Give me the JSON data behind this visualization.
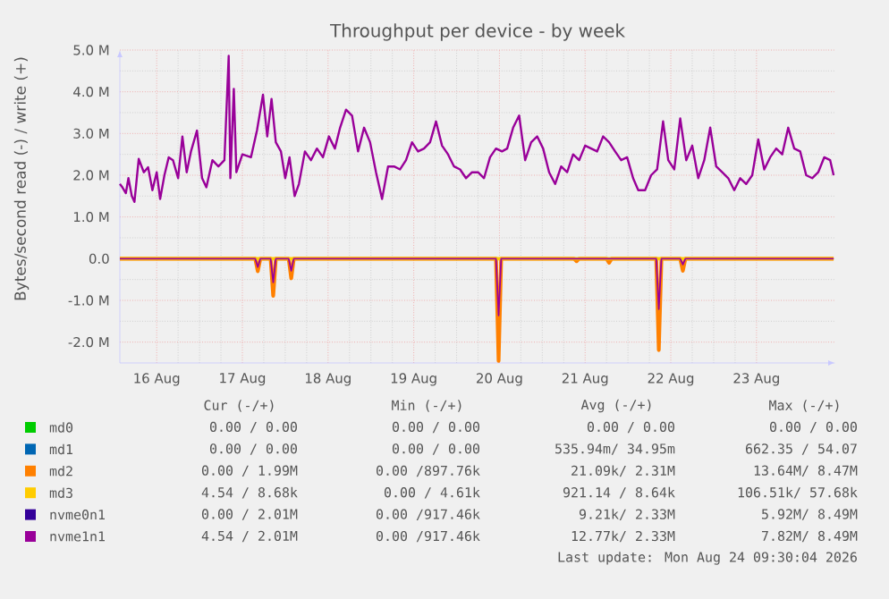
{
  "chart_data": {
    "type": "line",
    "title": "Throughput per device - by week",
    "ylabel": "Bytes/second read (-) / write (+)",
    "xlim": [
      "2026-08-15T13:41",
      "2026-08-23T22:05"
    ],
    "ylim": [
      -2.5,
      5.0
    ],
    "xticks": [
      {
        "value": "2026-08-16",
        "label": "16 Aug"
      },
      {
        "value": "2026-08-17",
        "label": "17 Aug"
      },
      {
        "value": "2026-08-18",
        "label": "18 Aug"
      },
      {
        "value": "2026-08-19",
        "label": "19 Aug"
      },
      {
        "value": "2026-08-20",
        "label": "20 Aug"
      },
      {
        "value": "2026-08-21",
        "label": "21 Aug"
      },
      {
        "value": "2026-08-22",
        "label": "22 Aug"
      },
      {
        "value": "2026-08-23",
        "label": "23 Aug"
      }
    ],
    "yticks": [
      {
        "value": -2,
        "label": "-2.0 M"
      },
      {
        "value": -1,
        "label": "-1.0 M"
      },
      {
        "value": 0,
        "label": "0.0"
      },
      {
        "value": 1,
        "label": "1.0 M"
      },
      {
        "value": 2,
        "label": "2.0 M"
      },
      {
        "value": 3,
        "label": "3.0 M"
      },
      {
        "value": 4,
        "label": "4.0 M"
      },
      {
        "value": 5,
        "label": "5.0 M"
      }
    ],
    "grid": true,
    "legend": "bottom",
    "series": [
      {
        "name": "md0",
        "color": "#00cc00"
      },
      {
        "name": "md1",
        "color": "#0066b3"
      },
      {
        "name": "md2",
        "color": "#ff8000",
        "x": [
          "2026-08-15T13:41",
          "2026-08-17T03:36",
          "2026-08-17T04:19",
          "2026-08-17T05:02",
          "2026-08-17T07:55",
          "2026-08-17T08:38",
          "2026-08-17T09:22",
          "2026-08-17T12:58",
          "2026-08-17T13:41",
          "2026-08-17T14:24",
          "2026-08-19T23:02",
          "2026-08-19T23:46",
          "2026-08-20T00:29",
          "2026-08-20T20:53",
          "2026-08-20T21:36",
          "2026-08-20T22:19",
          "2026-08-21T06:00",
          "2026-08-21T06:43",
          "2026-08-21T07:26",
          "2026-08-21T19:55",
          "2026-08-21T20:38",
          "2026-08-21T21:22",
          "2026-08-22T02:38",
          "2026-08-22T03:22",
          "2026-08-22T04:05",
          "2026-08-23T21:36"
        ],
        "values": [
          0,
          0,
          -0.3,
          0,
          0,
          -0.89,
          0,
          0,
          -0.47,
          0,
          0,
          -2.45,
          0,
          0,
          -0.06,
          0,
          0,
          -0.1,
          0,
          0,
          -2.19,
          0,
          0,
          -0.29,
          0,
          0
        ]
      },
      {
        "name": "md3",
        "color": "#ffcc00",
        "x": [
          "2026-08-15T13:41",
          "2026-08-23T21:36"
        ],
        "values": [
          0,
          0
        ]
      },
      {
        "name": "nvme0n1",
        "color": "#330099"
      },
      {
        "name": "nvme1n1",
        "color": "#990099",
        "x": [
          "2026-08-15T13:41",
          "2026-08-15T14:24",
          "2026-08-15T15:22",
          "2026-08-15T16:05",
          "2026-08-15T17:02",
          "2026-08-15T17:46",
          "2026-08-15T18:58",
          "2026-08-15T20:24",
          "2026-08-15T21:36",
          "2026-08-15T22:48",
          "2026-08-16T00:00",
          "2026-08-16T00:58",
          "2026-08-16T02:10",
          "2026-08-16T03:22",
          "2026-08-16T04:34",
          "2026-08-16T06:00",
          "2026-08-16T07:12",
          "2026-08-16T08:24",
          "2026-08-16T09:36",
          "2026-08-16T11:17",
          "2026-08-16T12:43",
          "2026-08-16T13:55",
          "2026-08-16T15:36",
          "2026-08-16T17:17",
          "2026-08-16T18:58",
          "2026-08-16T20:10",
          "2026-08-16T20:38",
          "2026-08-16T21:36",
          "2026-08-16T22:19",
          "2026-08-17T00:00",
          "2026-08-17T02:24",
          "2026-08-17T04:05",
          "2026-08-17T05:46",
          "2026-08-17T06:58",
          "2026-08-17T08:10",
          "2026-08-17T09:22",
          "2026-08-17T10:48",
          "2026-08-17T12:00",
          "2026-08-17T13:12",
          "2026-08-17T14:38",
          "2026-08-17T15:50",
          "2026-08-17T17:31",
          "2026-08-17T19:12",
          "2026-08-17T20:53",
          "2026-08-17T22:34",
          "2026-08-18T00:14",
          "2026-08-18T01:55",
          "2026-08-18T03:22",
          "2026-08-18T05:02",
          "2026-08-18T06:43",
          "2026-08-18T08:24",
          "2026-08-18T10:05",
          "2026-08-18T11:46",
          "2026-08-18T13:26",
          "2026-08-18T15:07",
          "2026-08-18T16:48",
          "2026-08-18T18:29",
          "2026-08-18T20:10",
          "2026-08-18T21:50",
          "2026-08-18T23:31",
          "2026-08-19T01:12",
          "2026-08-19T02:53",
          "2026-08-19T04:34",
          "2026-08-19T06:14",
          "2026-08-19T07:55",
          "2026-08-19T09:36",
          "2026-08-19T11:17",
          "2026-08-19T12:58",
          "2026-08-19T14:38",
          "2026-08-19T16:19",
          "2026-08-19T18:00",
          "2026-08-19T19:41",
          "2026-08-19T21:22",
          "2026-08-19T23:02",
          "2026-08-20T00:43",
          "2026-08-20T02:10",
          "2026-08-20T03:50",
          "2026-08-20T05:31",
          "2026-08-20T07:12",
          "2026-08-20T08:53",
          "2026-08-20T10:34",
          "2026-08-20T12:14",
          "2026-08-20T13:55",
          "2026-08-20T15:36",
          "2026-08-20T17:17",
          "2026-08-20T18:58",
          "2026-08-20T20:38",
          "2026-08-20T22:19",
          "2026-08-21T00:00",
          "2026-08-21T01:41",
          "2026-08-21T03:22",
          "2026-08-21T05:02",
          "2026-08-21T06:43",
          "2026-08-21T08:24",
          "2026-08-21T10:05",
          "2026-08-21T11:46",
          "2026-08-21T13:26",
          "2026-08-21T14:53",
          "2026-08-21T16:48",
          "2026-08-21T18:29",
          "2026-08-21T20:10",
          "2026-08-21T21:50",
          "2026-08-21T23:17",
          "2026-08-22T00:58",
          "2026-08-22T02:38",
          "2026-08-22T04:19",
          "2026-08-22T06:00",
          "2026-08-22T07:41",
          "2026-08-22T09:22",
          "2026-08-22T11:02",
          "2026-08-22T12:43",
          "2026-08-22T14:24",
          "2026-08-22T16:05",
          "2026-08-22T17:46",
          "2026-08-22T19:26",
          "2026-08-22T21:07",
          "2026-08-22T22:48",
          "2026-08-23T00:29",
          "2026-08-23T02:10",
          "2026-08-23T03:50",
          "2026-08-23T05:31",
          "2026-08-23T07:12",
          "2026-08-23T08:53",
          "2026-08-23T10:34",
          "2026-08-23T12:14",
          "2026-08-23T13:55",
          "2026-08-23T15:36",
          "2026-08-23T17:17",
          "2026-08-23T18:58",
          "2026-08-23T20:38",
          "2026-08-23T21:36"
        ],
        "values": [
          1.79,
          1.71,
          1.57,
          1.93,
          1.5,
          1.36,
          2.39,
          2.07,
          2.19,
          1.64,
          2.07,
          1.43,
          2.0,
          2.43,
          2.36,
          1.93,
          2.93,
          2.07,
          2.57,
          3.07,
          1.93,
          1.71,
          2.36,
          2.21,
          2.36,
          4.86,
          1.93,
          4.07,
          2.07,
          2.5,
          2.43,
          3.07,
          3.93,
          2.93,
          3.83,
          2.79,
          2.57,
          1.93,
          2.43,
          1.5,
          1.79,
          2.57,
          2.36,
          2.64,
          2.43,
          2.93,
          2.64,
          3.14,
          3.57,
          3.43,
          2.57,
          3.14,
          2.79,
          2.07,
          1.43,
          2.21,
          2.21,
          2.14,
          2.36,
          2.79,
          2.57,
          2.64,
          2.79,
          3.29,
          2.71,
          2.5,
          2.21,
          2.14,
          1.93,
          2.07,
          2.07,
          1.93,
          2.43,
          2.64,
          2.57,
          2.64,
          3.14,
          3.43,
          2.36,
          2.79,
          2.93,
          2.64,
          2.07,
          1.79,
          2.21,
          2.07,
          2.5,
          2.36,
          2.71,
          2.64,
          2.57,
          2.93,
          2.79,
          2.57,
          2.36,
          2.43,
          1.93,
          1.64,
          1.64,
          2.0,
          2.14,
          3.29,
          2.36,
          2.14,
          3.36,
          2.36,
          2.71,
          1.93,
          2.36,
          3.14,
          2.21,
          2.07,
          1.93,
          1.64,
          1.93,
          1.79,
          2.0,
          2.86,
          2.14,
          2.43,
          2.64,
          2.5,
          3.14,
          2.64,
          2.57,
          2.0,
          1.93,
          2.07,
          2.43,
          2.36,
          2.0
        ]
      },
      {
        "color": "#990099",
        "x": [
          "2026-08-15T13:41",
          "2026-08-17T03:36",
          "2026-08-17T04:19",
          "2026-08-17T05:02",
          "2026-08-17T07:55",
          "2026-08-17T08:38",
          "2026-08-17T09:22",
          "2026-08-17T12:58",
          "2026-08-17T13:41",
          "2026-08-17T14:24",
          "2026-08-19T23:02",
          "2026-08-19T23:46",
          "2026-08-20T00:29",
          "2026-08-21T19:55",
          "2026-08-21T20:38",
          "2026-08-21T21:22",
          "2026-08-22T02:38",
          "2026-08-22T03:22",
          "2026-08-22T04:05",
          "2026-08-23T21:36"
        ],
        "values": [
          0,
          0,
          -0.2,
          0,
          0,
          -0.57,
          0,
          0,
          -0.29,
          0,
          0,
          -1.36,
          0,
          0,
          -1.21,
          0,
          0,
          -0.14,
          0,
          0
        ]
      }
    ],
    "annotations": [
      "Cur (-/+)",
      "Min (-/+)",
      "Avg (-/+)",
      "Max (-/+)",
      "0.00 / 0.00",
      "0.00 / 0.00",
      "0.00 / 0.00",
      "0.00 / 0.00",
      "0.00 / 0.00",
      "0.00 / 0.00",
      "535.94m/ 34.95m",
      "662.35 / 54.07",
      "0.00 / 1.99M",
      "0.00 /897.76k",
      "21.09k/ 2.31M",
      "13.64M/ 8.47M",
      "4.54 / 8.68k",
      "0.00 / 4.61k",
      "921.14 / 8.64k",
      "106.51k/ 57.68k",
      "0.00 / 2.01M",
      "0.00 /917.46k",
      "9.21k/ 2.33M",
      "5.92M/ 8.49M",
      "4.54 / 2.01M",
      "0.00 /917.46k",
      "12.77k/ 2.33M",
      "7.82M/ 8.49M",
      "Last update: Mon Aug 24 09:30:04 2026"
    ]
  }
}
